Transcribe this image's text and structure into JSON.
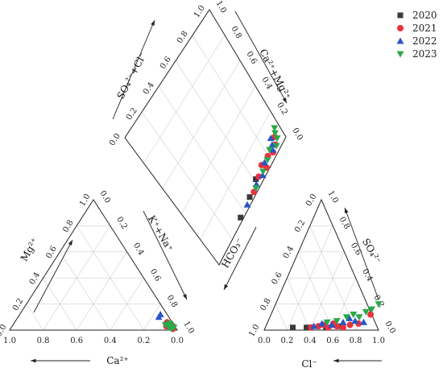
{
  "chart_data": {
    "type": "scatter",
    "subtype": "piper-diagram",
    "title": "",
    "legend": {
      "placement": "top-right",
      "entries": [
        {
          "label": "2020",
          "marker": "square",
          "color": "#3a3a3a"
        },
        {
          "label": "2021",
          "marker": "circle",
          "color": "#e8323c"
        },
        {
          "label": "2022",
          "marker": "triangle-up",
          "color": "#2a55c8"
        },
        {
          "label": "2023",
          "marker": "triangle-down",
          "color": "#2aa84a"
        }
      ]
    },
    "grid": true,
    "tick_labels": [
      "0.0",
      "0.2",
      "0.4",
      "0.6",
      "0.8",
      "1.0"
    ],
    "axis_labels": {
      "cation_bottom": "Ca²⁺",
      "cation_left": "Mg²⁺",
      "cation_right": "K⁺+Na⁺",
      "anion_bottom": "Cl⁻",
      "anion_left": "HCO₃⁻",
      "anion_right": "SO₄²⁻",
      "diamond_upper_left": "SO₄²⁻+Cl⁻",
      "diamond_upper_right": "Ca²⁺+Mg²⁺"
    },
    "series": [
      {
        "name": "2020",
        "cation": [
          {
            "ca": 0.03,
            "mg": 0.02
          },
          {
            "ca": 0.02,
            "mg": 0.04
          }
        ],
        "anion": [
          {
            "cl": 0.24,
            "so4": 0.02
          },
          {
            "cl": 0.36,
            "so4": 0.02
          },
          {
            "cl": 0.53,
            "so4": 0.02
          },
          {
            "cl": 0.64,
            "so4": 0.03
          }
        ],
        "diamond": [
          {
            "x": 0.02,
            "y": 0.35
          },
          {
            "x": 0.03,
            "y": 0.5
          },
          {
            "x": 0.05,
            "y": 0.62
          }
        ]
      },
      {
        "name": "2021",
        "cation": [
          {
            "ca": 0.02,
            "mg": 0.01
          },
          {
            "ca": 0.05,
            "mg": 0.03
          },
          {
            "ca": 0.03,
            "mg": 0.06
          },
          {
            "ca": 0.01,
            "mg": 0.03
          }
        ],
        "anion": [
          {
            "cl": 0.4,
            "so4": 0.02
          },
          {
            "cl": 0.46,
            "so4": 0.03
          },
          {
            "cl": 0.5,
            "so4": 0.04
          },
          {
            "cl": 0.55,
            "so4": 0.02
          },
          {
            "cl": 0.58,
            "so4": 0.05
          },
          {
            "cl": 0.62,
            "so4": 0.03
          },
          {
            "cl": 0.68,
            "so4": 0.02
          },
          {
            "cl": 0.73,
            "so4": 0.04
          },
          {
            "cl": 0.8,
            "so4": 0.05
          },
          {
            "cl": 0.87,
            "so4": 0.12
          }
        ],
        "diamond": [
          {
            "x": 0.02,
            "y": 0.55
          },
          {
            "x": 0.04,
            "y": 0.65
          },
          {
            "x": 0.06,
            "y": 0.72
          },
          {
            "x": 0.03,
            "y": 0.85
          },
          {
            "x": 0.02,
            "y": 0.74
          },
          {
            "x": 0.05,
            "y": 0.8
          },
          {
            "x": 0.04,
            "y": 0.9
          },
          {
            "x": 0.07,
            "y": 0.93
          }
        ]
      },
      {
        "name": "2022",
        "cation": [
          {
            "ca": 0.06,
            "mg": 0.1
          },
          {
            "ca": 0.04,
            "mg": 0.12
          },
          {
            "ca": 0.03,
            "mg": 0.05
          }
        ],
        "anion": [
          {
            "cl": 0.42,
            "so4": 0.03
          },
          {
            "cl": 0.48,
            "so4": 0.05
          },
          {
            "cl": 0.57,
            "so4": 0.04
          },
          {
            "cl": 0.66,
            "so4": 0.06
          },
          {
            "cl": 0.7,
            "so4": 0.09
          },
          {
            "cl": 0.76,
            "so4": 0.07
          },
          {
            "cl": 0.84,
            "so4": 0.06
          }
        ],
        "diamond": [
          {
            "x": 0.02,
            "y": 0.45
          },
          {
            "x": 0.03,
            "y": 0.6
          },
          {
            "x": 0.02,
            "y": 0.68
          },
          {
            "x": 0.05,
            "y": 0.75
          },
          {
            "x": 0.04,
            "y": 0.86
          },
          {
            "x": 0.06,
            "y": 0.88
          },
          {
            "x": 0.09,
            "y": 0.9
          }
        ]
      },
      {
        "name": "2023",
        "cation": [
          {
            "ca": 0.01,
            "mg": 0.02
          },
          {
            "ca": 0.02,
            "mg": 0.03
          },
          {
            "ca": 0.03,
            "mg": 0.01
          },
          {
            "ca": 0.04,
            "mg": 0.02
          },
          {
            "ca": 0.05,
            "mg": 0.04
          },
          {
            "ca": 0.02,
            "mg": 0.05
          }
        ],
        "anion": [
          {
            "cl": 0.52,
            "so4": 0.06
          },
          {
            "cl": 0.6,
            "so4": 0.07
          },
          {
            "cl": 0.67,
            "so4": 0.1
          },
          {
            "cl": 0.72,
            "so4": 0.12
          },
          {
            "cl": 0.78,
            "so4": 0.1
          },
          {
            "cl": 0.82,
            "so4": 0.14
          },
          {
            "cl": 0.86,
            "so4": 0.16
          },
          {
            "cl": 0.9,
            "so4": 0.2
          }
        ],
        "diamond": [
          {
            "x": 0.02,
            "y": 0.58
          },
          {
            "x": 0.03,
            "y": 0.7
          },
          {
            "x": 0.04,
            "y": 0.78
          },
          {
            "x": 0.03,
            "y": 0.9
          },
          {
            "x": 0.06,
            "y": 0.84
          },
          {
            "x": 0.05,
            "y": 0.94
          },
          {
            "x": 0.08,
            "y": 0.95
          },
          {
            "x": 0.1,
            "y": 0.97
          }
        ]
      }
    ]
  }
}
